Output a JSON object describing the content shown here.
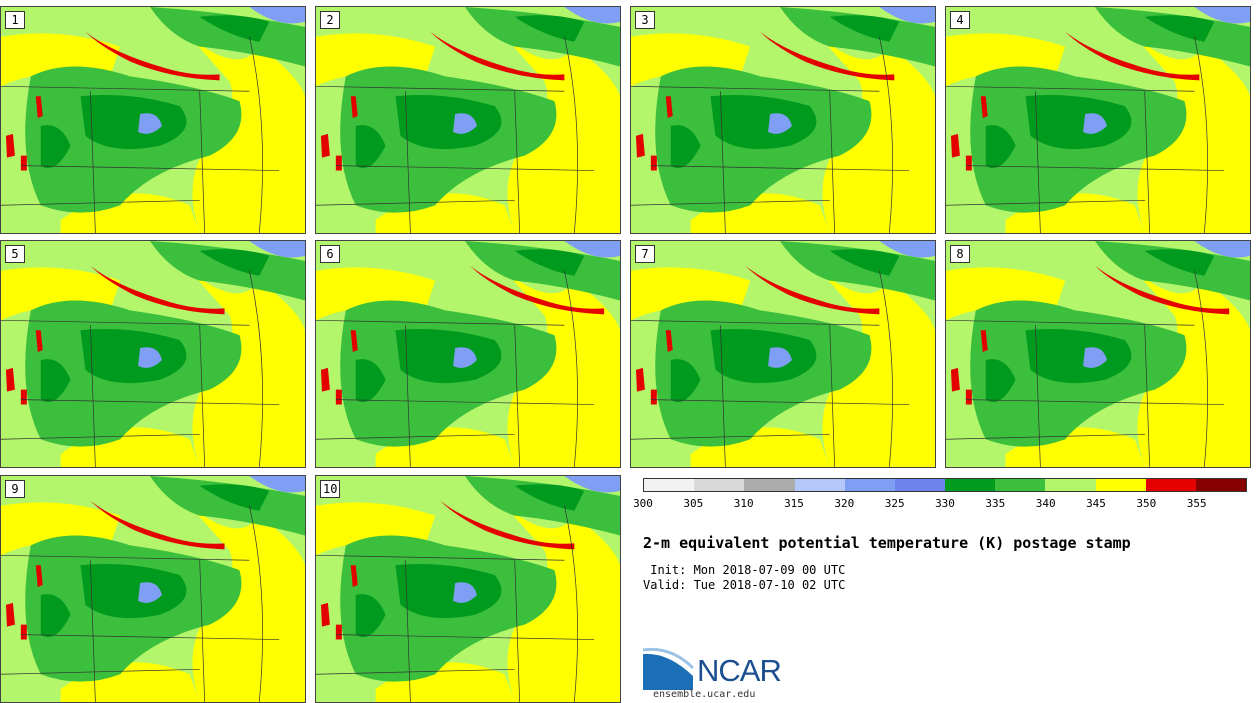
{
  "panels": [
    "1",
    "2",
    "3",
    "4",
    "5",
    "6",
    "7",
    "8",
    "9",
    "10"
  ],
  "colorbar": {
    "colors": [
      "#f2f2f2",
      "#d9d9d9",
      "#acacac",
      "#b5c8fa",
      "#7f9ff5",
      "#6e82ee",
      "#009b1e",
      "#3cbf3c",
      "#b3f56b",
      "#ffff00",
      "#e50000",
      "#870000"
    ],
    "labels": [
      "300",
      "305",
      "310",
      "315",
      "320",
      "325",
      "330",
      "335",
      "340",
      "345",
      "350",
      "355"
    ]
  },
  "title": "2-m equivalent potential temperature (K) postage stamp",
  "init": " Init: Mon 2018-07-09 00 UTC",
  "valid": "Valid: Tue 2018-07-10 02 UTC",
  "logo": {
    "text": "NCAR",
    "site": "ensemble.ucar.edu"
  }
}
